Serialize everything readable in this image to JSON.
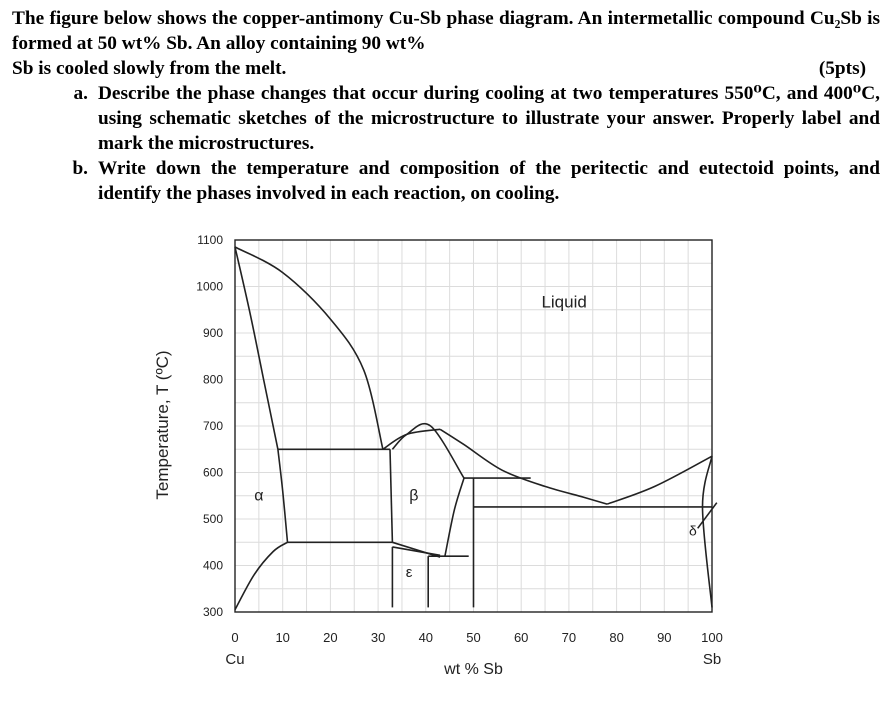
{
  "question": {
    "intro": "The figure below shows the copper-antimony Cu-Sb phase diagram. An intermetallic compound Cu₂Sb is formed at 50 wt% Sb. An alloy containing 90 wt%",
    "intro_last": "Sb is cooled slowly from the melt.",
    "points": "(5pts)",
    "parts": [
      {
        "letter": "a.",
        "text": "Describe the phase changes that occur during cooling at two temperatures 550⁰C, and 400⁰C, using schematic sketches of the microstructure to illustrate your answer. Properly label and mark the microstructures."
      },
      {
        "letter": "b.",
        "text": "Write down the temperature and composition of the peritectic and eutectoid points, and identify the phases involved in each reaction, on cooling."
      }
    ]
  },
  "chart_data": {
    "type": "phase-diagram",
    "xlabel": "wt % Sb",
    "ylabel": "Temperature, T (ºC)",
    "xlim": [
      0,
      100
    ],
    "ylim": [
      300,
      1100
    ],
    "x_ticks": [
      "0",
      "10",
      "20",
      "30",
      "40",
      "50",
      "60",
      "70",
      "80",
      "90",
      "100"
    ],
    "y_ticks": [
      "1100",
      "1000",
      "900",
      "800",
      "700",
      "600",
      "500",
      "400",
      "300"
    ],
    "x_end_labels": {
      "left": "Cu",
      "right": "Sb"
    },
    "grid": true,
    "phase_labels": [
      "Liquid",
      "α",
      "β",
      "ε",
      "δ"
    ],
    "boundaries": [
      {
        "name": "liquidus-alpha",
        "points": [
          [
            0,
            1085
          ],
          [
            10,
            1030
          ],
          [
            20,
            930
          ],
          [
            27,
            820
          ],
          [
            31,
            650
          ]
        ]
      },
      {
        "name": "solidus-alpha",
        "points": [
          [
            0,
            1085
          ],
          [
            3,
            950
          ],
          [
            6,
            800
          ],
          [
            9,
            650
          ]
        ]
      },
      {
        "name": "alpha-solvus",
        "points": [
          [
            9,
            650
          ],
          [
            10,
            560
          ],
          [
            11,
            450
          ]
        ]
      },
      {
        "name": "alpha-eps-lower",
        "points": [
          [
            0,
            305
          ],
          [
            4,
            380
          ],
          [
            8,
            430
          ],
          [
            11,
            450
          ]
        ]
      },
      {
        "name": "peritectic-isotherm",
        "points": [
          [
            9,
            650
          ],
          [
            32.5,
            650
          ]
        ]
      },
      {
        "name": "liquidus-beta-left",
        "points": [
          [
            31,
            650
          ],
          [
            36,
            682
          ],
          [
            43,
            693
          ]
        ]
      },
      {
        "name": "liquidus-beta-right",
        "points": [
          [
            43,
            693
          ],
          [
            48,
            660
          ],
          [
            56,
            605
          ],
          [
            65,
            570
          ],
          [
            73,
            547
          ],
          [
            78,
            532
          ]
        ]
      },
      {
        "name": "beta-left",
        "points": [
          [
            32.5,
            650
          ],
          [
            33,
            450
          ]
        ]
      },
      {
        "name": "beta-inner",
        "points": [
          [
            33,
            650
          ],
          [
            36,
            682
          ],
          [
            41,
            700
          ],
          [
            48,
            588
          ]
        ]
      },
      {
        "name": "beta-right-lower",
        "points": [
          [
            48,
            588
          ],
          [
            46,
            520
          ],
          [
            44,
            420
          ]
        ]
      },
      {
        "name": "eutectoid-isotherm",
        "points": [
          [
            11,
            450
          ],
          [
            33,
            450
          ]
        ]
      },
      {
        "name": "beta-eps-left",
        "points": [
          [
            33,
            450
          ],
          [
            43,
            418
          ]
        ]
      },
      {
        "name": "beta-eps-mid",
        "points": [
          [
            33,
            440
          ],
          [
            43,
            422
          ]
        ]
      },
      {
        "name": "eps-line",
        "points": [
          [
            40.5,
            420
          ],
          [
            49,
            420
          ]
        ]
      },
      {
        "name": "eps-left",
        "points": [
          [
            33,
            440
          ],
          [
            33,
            310
          ]
        ]
      },
      {
        "name": "eps-mid",
        "points": [
          [
            40.5,
            420
          ],
          [
            40.5,
            310
          ]
        ]
      },
      {
        "name": "cu2sb-line",
        "points": [
          [
            50,
            588
          ],
          [
            50,
            310
          ]
        ]
      },
      {
        "name": "isotherm-586",
        "points": [
          [
            48,
            588
          ],
          [
            62,
            588
          ]
        ]
      },
      {
        "name": "eutectic-isotherm",
        "points": [
          [
            50,
            526
          ],
          [
            100,
            526
          ]
        ]
      },
      {
        "name": "sb-liquidus",
        "points": [
          [
            78,
            532
          ],
          [
            88,
            570
          ],
          [
            100,
            635
          ]
        ]
      },
      {
        "name": "delta-solvus",
        "points": [
          [
            100,
            635
          ],
          [
            98,
            526
          ],
          [
            100,
            310
          ]
        ]
      },
      {
        "name": "delta-pointer",
        "points": [
          [
            97,
            480
          ],
          [
            101,
            535
          ]
        ]
      }
    ]
  }
}
